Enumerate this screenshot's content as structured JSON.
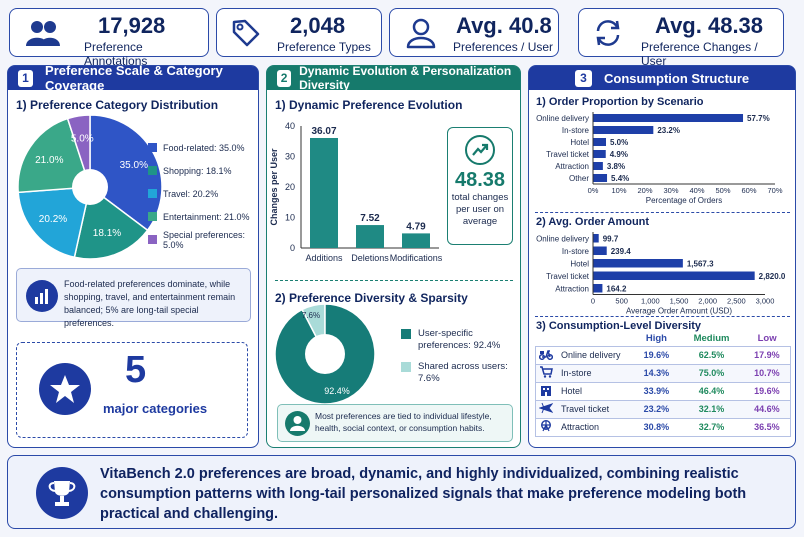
{
  "stats": [
    {
      "value": "17,928",
      "label": "Preference Annotations",
      "icon": "users-icon"
    },
    {
      "value": "2,048",
      "label": "Preference Types",
      "icon": "tag-icon"
    },
    {
      "value": "Avg. 40.8",
      "label": "Preferences / User",
      "icon": "user-icon"
    },
    {
      "value": "Avg. 48.38",
      "label": "Preference Changes / User",
      "icon": "refresh-icon"
    }
  ],
  "panel1": {
    "badge": "1",
    "title": "Preference Scale & Category Coverage",
    "section_title": "1) Preference Category Distribution",
    "note": "Food-related preferences dominate, while shopping, travel, and entertainment remain balanced; 5% are long-tail special preferences.",
    "big_number": "5",
    "big_label": "major categories"
  },
  "panel2": {
    "badge": "2",
    "title": "Dynamic Evolution & Personalization Diversity",
    "section1_title": "1) Dynamic Preference Evolution",
    "callout_value": "48.38",
    "callout_text": "total changes per user on average",
    "section2_title": "2) Preference Diversity & Sparsity",
    "note": "Most preferences are tied to individual lifestyle, health, social context, or consumption habits."
  },
  "panel3": {
    "badge": "3",
    "title": "Consumption Structure",
    "section1_title": "1) Order Proportion by Scenario",
    "section2_title": "2) Avg. Order Amount",
    "section3_title": "3) Consumption-Level Diversity"
  },
  "footer": {
    "text": "VitaBench 2.0 preferences are broad, dynamic, and highly individualized, combining realistic consumption patterns with long-tail personalized signals that make preference modeling both practical and challenging."
  },
  "chart_data": [
    {
      "type": "pie",
      "categories": [
        "Food-related",
        "Shopping",
        "Travel",
        "Entertainment",
        "Special preferences"
      ],
      "values": [
        35.0,
        18.1,
        20.2,
        21.0,
        5.0
      ],
      "slice_labels": [
        "35.0%",
        "18.1%",
        "20.2%",
        "21.0%",
        "5.0%"
      ],
      "legend": [
        "Food-related: 35.0%",
        "Shopping: 18.1%",
        "Travel: 20.2%",
        "Entertainment: 21.0%",
        "Special preferences: 5.0%"
      ],
      "colors": [
        "#2f55c6",
        "#1f9488",
        "#22a5d8",
        "#3aa889",
        "#8a63c2"
      ],
      "legend_position": "right"
    },
    {
      "type": "bar",
      "categories": [
        "Additions",
        "Deletions",
        "Modifications"
      ],
      "values": [
        36.07,
        7.52,
        4.79
      ],
      "value_labels": [
        "36.07",
        "7.52",
        "4.79"
      ],
      "ylabel": "Changes per User",
      "ylim": [
        0,
        40
      ],
      "yticks": [
        "0",
        "10",
        "20",
        "30",
        "40"
      ],
      "color": "#1f8a84"
    },
    {
      "type": "pie",
      "categories": [
        "User-specific preferences",
        "Shared across users"
      ],
      "values": [
        92.4,
        7.6
      ],
      "slice_labels": [
        "92.4%",
        "7.6%"
      ],
      "legend": [
        "User-specific preferences: 92.4%",
        "Shared across users: 7.6%"
      ],
      "colors": [
        "#167c78",
        "#a9dbd8"
      ],
      "legend_position": "right"
    },
    {
      "type": "bar",
      "orientation": "horizontal",
      "categories": [
        "Online delivery",
        "In-store",
        "Hotel",
        "Travel ticket",
        "Attraction",
        "Other"
      ],
      "values": [
        57.7,
        23.2,
        5.0,
        4.9,
        3.8,
        5.4
      ],
      "value_labels": [
        "57.7%",
        "23.2%",
        "5.0%",
        "4.9%",
        "3.8%",
        "5.4%"
      ],
      "xlabel": "Percentage of Orders",
      "xlim": [
        0,
        70
      ],
      "xticks": [
        "0%",
        "10%",
        "20%",
        "30%",
        "40%",
        "50%",
        "60%",
        "70%"
      ],
      "color": "#1e3fa8"
    },
    {
      "type": "bar",
      "orientation": "horizontal",
      "categories": [
        "Online delivery",
        "In-store",
        "Hotel",
        "Travel ticket",
        "Attraction"
      ],
      "values": [
        99.7,
        239.4,
        1567.3,
        2820.0,
        164.2
      ],
      "value_labels": [
        "99.7",
        "239.4",
        "1,567.3",
        "2,820.0",
        "164.2"
      ],
      "xlabel": "Average Order Amount (USD)",
      "xlim": [
        0,
        3000
      ],
      "xticks": [
        "0",
        "500",
        "1,000",
        "1,500",
        "2,000",
        "2,500",
        "3,000"
      ],
      "color": "#1e3fa8"
    },
    {
      "type": "table",
      "columns": [
        "High",
        "Medium",
        "Low"
      ],
      "column_colors": [
        "#2b4aa8",
        "#1f8a5e",
        "#7b3fb0"
      ],
      "rows": [
        {
          "label": "Online delivery",
          "icon": "scooter-icon",
          "values": [
            "19.6%",
            "62.5%",
            "17.9%"
          ]
        },
        {
          "label": "In-store",
          "icon": "cart-icon",
          "values": [
            "14.3%",
            "75.0%",
            "10.7%"
          ]
        },
        {
          "label": "Hotel",
          "icon": "hotel-icon",
          "values": [
            "33.9%",
            "46.4%",
            "19.6%"
          ]
        },
        {
          "label": "Travel ticket",
          "icon": "plane-icon",
          "values": [
            "23.2%",
            "32.1%",
            "44.6%"
          ]
        },
        {
          "label": "Attraction",
          "icon": "ferris-wheel-icon",
          "values": [
            "30.8%",
            "32.7%",
            "36.5%"
          ]
        }
      ]
    }
  ]
}
